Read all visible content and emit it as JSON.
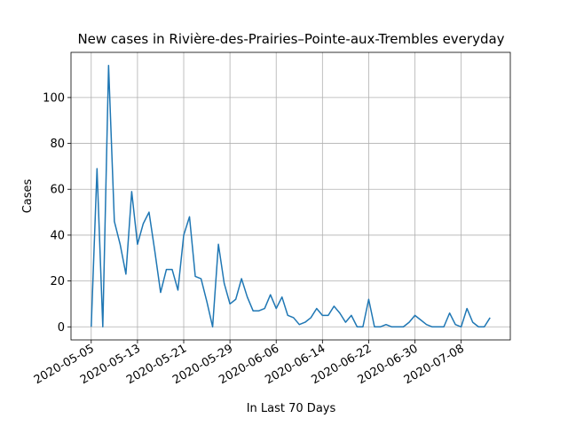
{
  "chart_data": {
    "type": "line",
    "title": "New cases in Rivière-des-Prairies–Pointe-aux-Trembles everyday",
    "xlabel": "In Last 70 Days",
    "ylabel": "Cases",
    "color": "#1f77b4",
    "grid": true,
    "x": [
      "2020-05-05",
      "2020-05-06",
      "2020-05-07",
      "2020-05-08",
      "2020-05-09",
      "2020-05-10",
      "2020-05-11",
      "2020-05-12",
      "2020-05-13",
      "2020-05-14",
      "2020-05-15",
      "2020-05-16",
      "2020-05-17",
      "2020-05-18",
      "2020-05-19",
      "2020-05-20",
      "2020-05-21",
      "2020-05-22",
      "2020-05-23",
      "2020-05-24",
      "2020-05-25",
      "2020-05-26",
      "2020-05-27",
      "2020-05-28",
      "2020-05-29",
      "2020-05-30",
      "2020-05-31",
      "2020-06-01",
      "2020-06-02",
      "2020-06-03",
      "2020-06-04",
      "2020-06-05",
      "2020-06-06",
      "2020-06-07",
      "2020-06-08",
      "2020-06-09",
      "2020-06-10",
      "2020-06-11",
      "2020-06-12",
      "2020-06-13",
      "2020-06-14",
      "2020-06-15",
      "2020-06-16",
      "2020-06-17",
      "2020-06-18",
      "2020-06-19",
      "2020-06-20",
      "2020-06-21",
      "2020-06-22",
      "2020-06-23",
      "2020-06-24",
      "2020-06-25",
      "2020-06-26",
      "2020-06-27",
      "2020-06-28",
      "2020-06-29",
      "2020-06-30",
      "2020-07-01",
      "2020-07-02",
      "2020-07-03",
      "2020-07-04",
      "2020-07-05",
      "2020-07-06",
      "2020-07-07",
      "2020-07-08",
      "2020-07-09",
      "2020-07-10",
      "2020-07-11",
      "2020-07-12",
      "2020-07-13"
    ],
    "values": [
      0,
      69,
      0,
      114,
      46,
      36,
      23,
      59,
      36,
      45,
      50,
      33,
      15,
      25,
      25,
      16,
      40,
      48,
      22,
      21,
      11,
      0,
      36,
      19,
      10,
      12,
      21,
      13,
      7,
      7,
      8,
      14,
      8,
      13,
      5,
      4,
      1,
      2,
      4,
      8,
      5,
      5,
      9,
      6,
      2,
      5,
      0,
      0,
      12,
      0,
      0,
      1,
      0,
      0,
      0,
      2,
      5,
      3,
      1,
      0,
      0,
      0,
      6,
      1,
      0,
      8,
      2,
      0,
      0,
      4
    ],
    "xlim": [
      "2020-05-01T12:00",
      "2020-07-16T12:00"
    ],
    "xticks": [
      "2020-05-05",
      "2020-05-13",
      "2020-05-21",
      "2020-05-29",
      "2020-06-06",
      "2020-06-14",
      "2020-06-22",
      "2020-06-30",
      "2020-07-08"
    ],
    "ylim": [
      -5.7,
      119.7
    ],
    "yticks": [
      0,
      20,
      40,
      60,
      80,
      100
    ]
  }
}
